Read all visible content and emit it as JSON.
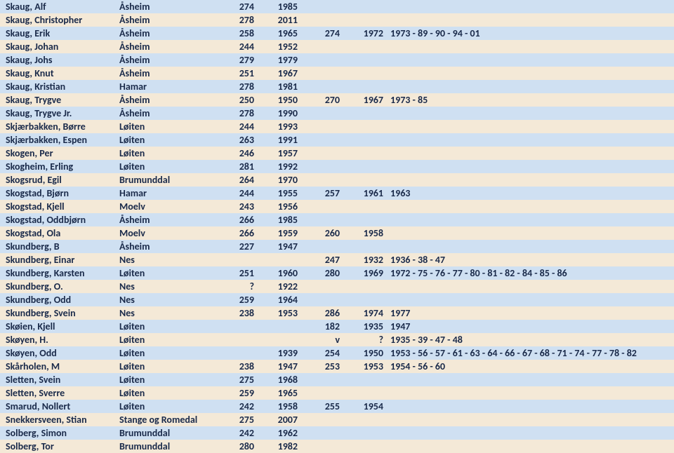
{
  "colors": {
    "band_even": "#cfe0f2",
    "band_odd": "#f4e9d7",
    "text": "#1a2a4a"
  },
  "rows": [
    {
      "name": "Skaug, Alf",
      "place": "Åsheim",
      "n1": "274",
      "n2": "1985"
    },
    {
      "name": "Skaug, Christopher",
      "place": "Åsheim",
      "n1": "278",
      "n2": "2011"
    },
    {
      "name": "Skaug, Erik",
      "place": "Åsheim",
      "n1": "258",
      "n2": "1965",
      "n3": "274",
      "n4": "1972",
      "n5": "1973 - 89 - 90 - 94 - 01"
    },
    {
      "name": "Skaug, Johan",
      "place": "Åsheim",
      "n1": "244",
      "n2": "1952"
    },
    {
      "name": "Skaug, Johs",
      "place": "Åsheim",
      "n1": "279",
      "n2": "1979"
    },
    {
      "name": "Skaug, Knut",
      "place": "Åsheim",
      "n1": "251",
      "n2": "1967"
    },
    {
      "name": "Skaug, Kristian",
      "place": "Hamar",
      "n1": "278",
      "n2": "1981"
    },
    {
      "name": "Skaug, Trygve",
      "place": "Åsheim",
      "n1": "250",
      "n2": "1950",
      "n3": "270",
      "n4": "1967",
      "n5": "1973 - 85"
    },
    {
      "name": "Skaug, Trygve Jr.",
      "place": "Åsheim",
      "n1": "278",
      "n2": "1990"
    },
    {
      "name": "Skjærbakken, Børre",
      "place": "Løiten",
      "n1": "244",
      "n2": "1993"
    },
    {
      "name": "Skjærbakken, Espen",
      "place": "Løiten",
      "n1": "263",
      "n2": "1991"
    },
    {
      "name": "Skogen, Per",
      "place": "Løiten",
      "n1": "246",
      "n2": "1957"
    },
    {
      "name": "Skogheim, Erling",
      "place": "Løiten",
      "n1": "281",
      "n2": "1992"
    },
    {
      "name": "Skogsrud, Egil",
      "place": "Brumunddal",
      "n1": "264",
      "n2": "1970"
    },
    {
      "name": "Skogstad, Bjørn",
      "place": "Hamar",
      "n1": "244",
      "n2": "1955",
      "n3": "257",
      "n4": "1961",
      "n5": "1963"
    },
    {
      "name": "Skogstad, Kjell",
      "place": "Moelv",
      "n1": "243",
      "n2": "1956"
    },
    {
      "name": "Skogstad, Oddbjørn",
      "place": "Åsheim",
      "n1": "266",
      "n2": "1985"
    },
    {
      "name": "Skogstad, Ola",
      "place": "Moelv",
      "n1": "266",
      "n2": "1959",
      "n3": "260",
      "n4": "1958"
    },
    {
      "name": "Skundberg, B",
      "place": "Åsheim",
      "n1": "227",
      "n2": "1947"
    },
    {
      "name": "Skundberg, Einar",
      "place": "Nes",
      "n3": "247",
      "n4": "1932",
      "n5": "1936 - 38 - 47"
    },
    {
      "name": "Skundberg, Karsten",
      "place": "Løiten",
      "n1": "251",
      "n2": "1960",
      "n3": "280",
      "n4": "1969",
      "n5": "1972 - 75 - 76 - 77 - 80 - 81 - 82 - 84 - 85 - 86"
    },
    {
      "name": "Skundberg, O.",
      "place": "Nes",
      "n1": "?",
      "n2": "1922"
    },
    {
      "name": "Skundberg, Odd",
      "place": "Nes",
      "n1": "259",
      "n2": "1964"
    },
    {
      "name": "Skundberg, Svein",
      "place": "Nes",
      "n1": "238",
      "n2": "1953",
      "n3": "286",
      "n4": "1974",
      "n5": "1977"
    },
    {
      "name": "Skøien, Kjell",
      "place": "Løiten",
      "n3": "182",
      "n4": "1935",
      "n5": "1947"
    },
    {
      "name": "Skøyen, H.",
      "place": "Løiten",
      "n3": "v",
      "n4": "?",
      "n5": "1935 - 39 - 47 - 48"
    },
    {
      "name": "Skøyen, Odd",
      "place": "Løiten",
      "n2": "1939",
      "n3": "254",
      "n4": "1950",
      "n5": "1953 - 56 - 57 - 61 - 63 - 64 - 66 - 67 - 68 - 71 - 74 - 77 - 78 - 82"
    },
    {
      "name": "Skårholen, M",
      "place": "Løiten",
      "n1": "238",
      "n2": "1947",
      "n3": "253",
      "n4": "1953",
      "n5": "1954 - 56 - 60"
    },
    {
      "name": "Sletten, Svein",
      "place": "Løiten",
      "n1": "275",
      "n2": "1968"
    },
    {
      "name": "Sletten, Sverre",
      "place": "Løiten",
      "n1": "259",
      "n2": "1965"
    },
    {
      "name": "Smarud, Nollert",
      "place": "Løiten",
      "n1": "242",
      "n2": "1958",
      "n3": "255",
      "n4": "1954"
    },
    {
      "name": "Snekkersveen, Stian",
      "place": "Stange og Romedal",
      "n1": "275",
      "n2": "2007"
    },
    {
      "name": "Solberg, Simon",
      "place": "Brumunddal",
      "n1": "242",
      "n2": "1962"
    },
    {
      "name": "Solberg, Tor",
      "place": "Brumunddal",
      "n1": "280",
      "n2": "1982"
    }
  ]
}
